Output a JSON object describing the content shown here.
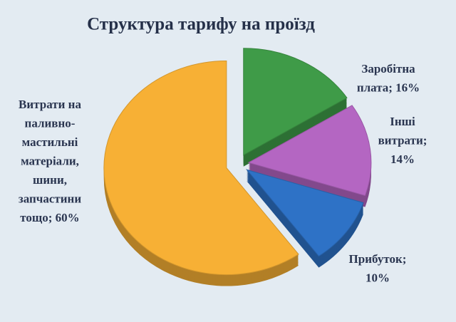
{
  "chart_data": {
    "type": "pie",
    "title": "Структура тарифу на проїзд",
    "values": [
      16,
      14,
      10,
      60
    ],
    "value_labels": [
      [
        "Заробітна",
        "плата; 16%"
      ],
      [
        "Інші",
        "витрати;",
        "14%"
      ],
      [
        "Прибуток;",
        "10%"
      ],
      [
        "Витрати на",
        "паливно-",
        "мастильні",
        "матеріали,",
        "шини,",
        "запчастини",
        "тощо; 60%"
      ]
    ],
    "colors": [
      "#3f9b48",
      "#b466c2",
      "#2e72c6",
      "#f7b035"
    ]
  }
}
